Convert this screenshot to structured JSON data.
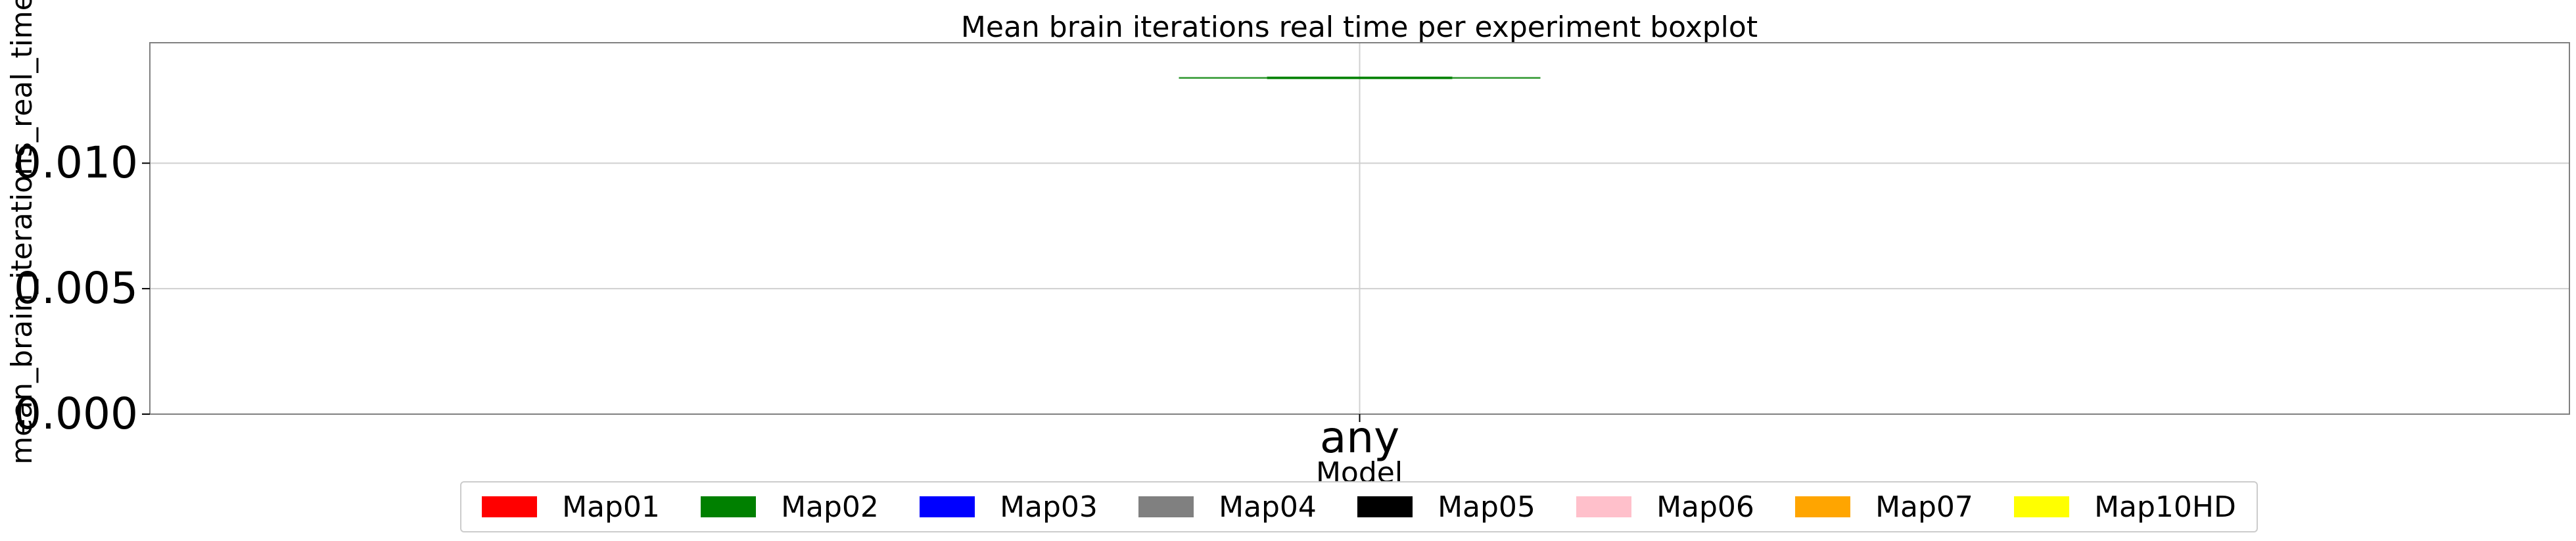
{
  "chart_data": {
    "type": "box",
    "title": "Mean brain iterations real time per experiment boxplot",
    "xlabel": "Model",
    "ylabel": "mean_brain_iterations_real_time",
    "categories": [
      "any"
    ],
    "ylim": [
      0,
      0.0148
    ],
    "yticks": [
      {
        "value": 0.0,
        "label": "0.000"
      },
      {
        "value": 0.005,
        "label": "0.005"
      },
      {
        "value": 0.01,
        "label": "0.010"
      }
    ],
    "grid": true,
    "legend_position": "bottom-center",
    "series": [
      {
        "name": "Map01",
        "color": "#ff0000"
      },
      {
        "name": "Map02",
        "color": "#008000",
        "box": {
          "category": "any",
          "min": 0.0134,
          "q1": 0.0134,
          "median": 0.0134,
          "q3": 0.0134,
          "max": 0.0134
        }
      },
      {
        "name": "Map03",
        "color": "#0000ff"
      },
      {
        "name": "Map04",
        "color": "#808080"
      },
      {
        "name": "Map05",
        "color": "#000000"
      },
      {
        "name": "Map06",
        "color": "#ffc0cb"
      },
      {
        "name": "Map07",
        "color": "#ffa500"
      },
      {
        "name": "Map10HD",
        "color": "#ffff00"
      }
    ]
  }
}
